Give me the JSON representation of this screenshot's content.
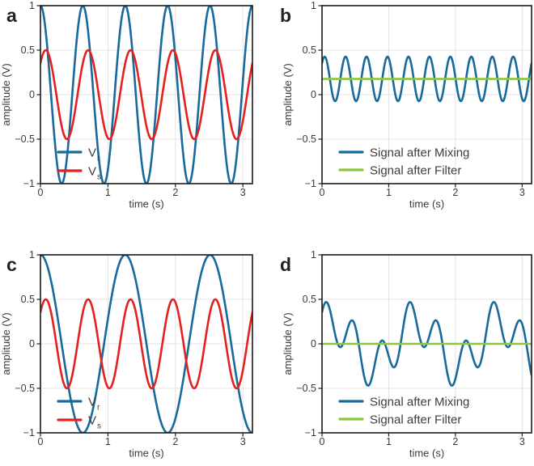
{
  "figure": {
    "background": "#ffffff",
    "panel_letters": [
      "a",
      "b",
      "c",
      "d"
    ]
  },
  "colors": {
    "signal_blue": "#176a9d",
    "signal_red": "#e52020",
    "filter_green": "#8cc63f",
    "grid": "#e3e3e3",
    "axis": "#1a1a1a",
    "tick_text": "#3a3a3a",
    "label_text": "#3a3a3a",
    "legend_text": "#3d3d3d",
    "panel_letter_text": "#222222"
  },
  "series_model": "y(t) = offset + sum_i amp_i * cos(omega_i * t - phase_i), t in seconds, omega in rad/s",
  "chart_data": [
    {
      "id": "a",
      "panel_letter": "a",
      "type": "line",
      "xlabel": "time (s)",
      "ylabel": "amplitude (V)",
      "xlim": [
        0,
        3.1416
      ],
      "ylim": [
        -1,
        1
      ],
      "xticks": [
        0,
        1,
        2,
        3
      ],
      "xtick_labels": [
        "0",
        "1",
        "2",
        "3"
      ],
      "yticks": [
        1,
        0.5,
        0,
        -0.5,
        -1
      ],
      "ytick_labels": [
        "1",
        "0.5",
        "0",
        "−0.5",
        "−1"
      ],
      "grid": true,
      "legend_position": "bottom-left",
      "series": [
        {
          "name": "Vr",
          "legend": {
            "main": "V",
            "sub": "r"
          },
          "color_key": "signal_blue",
          "offset": 0,
          "components": [
            {
              "amp": 1,
              "omega": 10,
              "phase": 0
            }
          ]
        },
        {
          "name": "Vs",
          "legend": {
            "main": "V",
            "sub": "s"
          },
          "color_key": "signal_red",
          "offset": 0,
          "components": [
            {
              "amp": 0.5,
              "omega": 10,
              "phase": 0.7854
            }
          ]
        }
      ]
    },
    {
      "id": "b",
      "panel_letter": "b",
      "type": "line",
      "xlabel": "time (s)",
      "ylabel": "amplitude (V)",
      "xlim": [
        0,
        3.1416
      ],
      "ylim": [
        -1,
        1
      ],
      "xticks": [
        0,
        1,
        2,
        3
      ],
      "xtick_labels": [
        "0",
        "1",
        "2",
        "3"
      ],
      "yticks": [
        1,
        0.5,
        0,
        -0.5,
        -1
      ],
      "ytick_labels": [
        "1",
        "0.5",
        "0",
        "−0.5",
        "−1"
      ],
      "grid": true,
      "legend_position": "bottom-left",
      "series": [
        {
          "name": "Signal after Mixing",
          "legend": {
            "main": "Signal after Mixing",
            "sub": ""
          },
          "color_key": "signal_blue",
          "offset": 0.1768,
          "components": [
            {
              "amp": 0.25,
              "omega": 20,
              "phase": 0.7854
            }
          ]
        },
        {
          "name": "Signal after Filter",
          "legend": {
            "main": "Signal after Filter",
            "sub": ""
          },
          "color_key": "filter_green",
          "offset": 0.1768,
          "components": []
        }
      ]
    },
    {
      "id": "c",
      "panel_letter": "c",
      "type": "line",
      "xlabel": "time (s)",
      "ylabel": "amplitude (V)",
      "xlim": [
        0,
        3.1416
      ],
      "ylim": [
        -1,
        1
      ],
      "xticks": [
        0,
        1,
        2,
        3
      ],
      "xtick_labels": [
        "0",
        "1",
        "2",
        "3"
      ],
      "yticks": [
        1,
        0.5,
        0,
        -0.5,
        -1
      ],
      "ytick_labels": [
        "1",
        "0.5",
        "0",
        "−0.5",
        "−1"
      ],
      "grid": true,
      "legend_position": "bottom-left",
      "series": [
        {
          "name": "Vr",
          "legend": {
            "main": "V",
            "sub": "r"
          },
          "color_key": "signal_blue",
          "offset": 0,
          "components": [
            {
              "amp": 1,
              "omega": 5,
              "phase": 0
            }
          ]
        },
        {
          "name": "Vs",
          "legend": {
            "main": "V",
            "sub": "s"
          },
          "color_key": "signal_red",
          "offset": 0,
          "components": [
            {
              "amp": 0.5,
              "omega": 10,
              "phase": 0.7854
            }
          ]
        }
      ]
    },
    {
      "id": "d",
      "panel_letter": "d",
      "type": "line",
      "xlabel": "time (s)",
      "ylabel": "amplitude (V)",
      "xlim": [
        0,
        3.1416
      ],
      "ylim": [
        -1,
        1
      ],
      "xticks": [
        0,
        1,
        2,
        3
      ],
      "xtick_labels": [
        "0",
        "1",
        "2",
        "3"
      ],
      "yticks": [
        1,
        0.5,
        0,
        -0.5,
        -1
      ],
      "ytick_labels": [
        "1",
        "0.5",
        "0",
        "−0.5",
        "−1"
      ],
      "grid": true,
      "legend_position": "bottom-left",
      "series": [
        {
          "name": "Signal after Mixing",
          "legend": {
            "main": "Signal after Mixing",
            "sub": ""
          },
          "color_key": "signal_blue",
          "offset": 0,
          "components": [
            {
              "amp": 0.25,
              "omega": 5,
              "phase": 0.7854
            },
            {
              "amp": 0.25,
              "omega": 15,
              "phase": 0.7854
            }
          ]
        },
        {
          "name": "Signal after Filter",
          "legend": {
            "main": "Signal after Filter",
            "sub": ""
          },
          "color_key": "filter_green",
          "offset": 0,
          "components": []
        }
      ]
    }
  ]
}
